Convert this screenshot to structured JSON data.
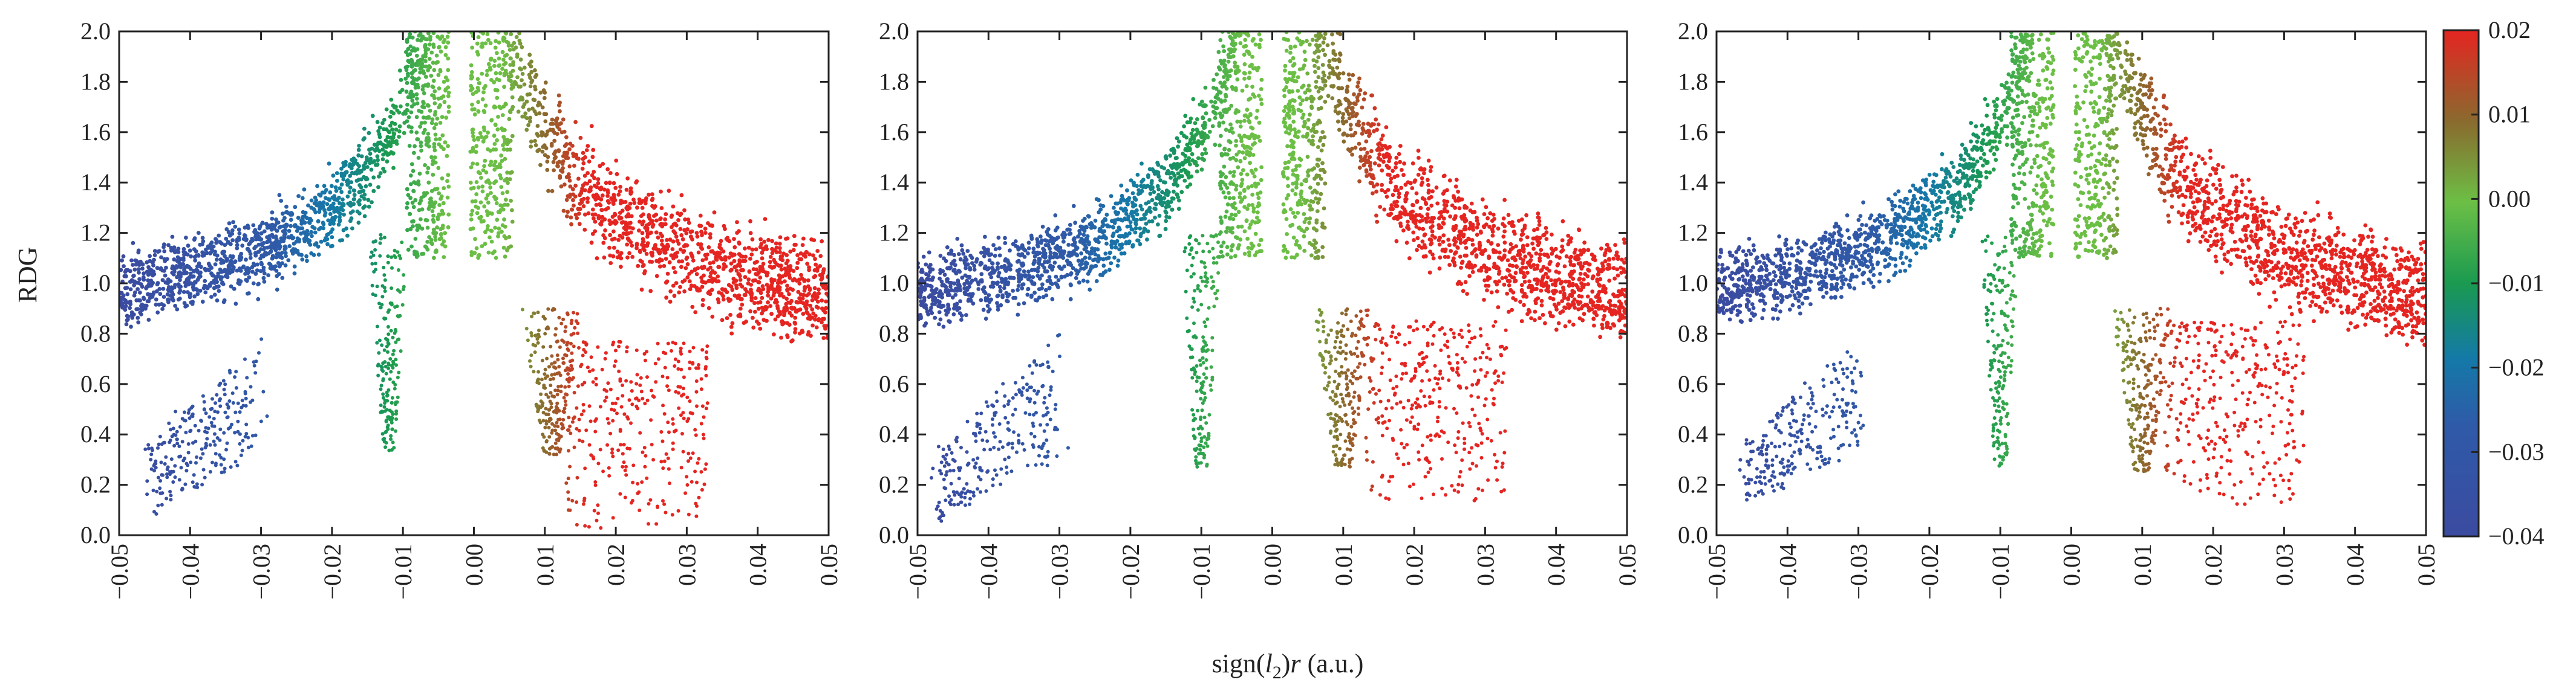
{
  "chart_data": {
    "type": "scatter",
    "layout": "three panels sharing y-axis and a colorbar",
    "x_axis": {
      "label_prefix": "sign(",
      "label_lambda": "l",
      "label_sub": "2",
      "label_suffix": ")",
      "label_var": "r",
      "label_unit": " (a.u.)",
      "range": [
        -0.05,
        0.05
      ],
      "ticks": [
        "−0.05",
        "−0.04",
        "−0.03",
        "−0.02",
        "−0.01",
        "0.00",
        "0.01",
        "0.02",
        "0.03",
        "0.04",
        "0.05"
      ],
      "tick_values": [
        -0.05,
        -0.04,
        -0.03,
        -0.02,
        -0.01,
        0.0,
        0.01,
        0.02,
        0.03,
        0.04,
        0.05
      ]
    },
    "y_axis": {
      "label": "RDG",
      "range": [
        0.0,
        2.0
      ],
      "ticks": [
        "0.0",
        "0.2",
        "0.4",
        "0.6",
        "0.8",
        "1.0",
        "1.2",
        "1.4",
        "1.6",
        "1.8",
        "2.0"
      ],
      "tick_values": [
        0.0,
        0.2,
        0.4,
        0.6,
        0.8,
        1.0,
        1.2,
        1.4,
        1.6,
        1.8,
        2.0
      ]
    },
    "colorbar": {
      "range": [
        -0.04,
        0.02
      ],
      "ticks": [
        "0.02",
        "0.01",
        "0.00",
        "−0.01",
        "−0.02",
        "−0.03",
        "−0.04"
      ],
      "tick_values": [
        0.02,
        0.01,
        0.0,
        -0.01,
        -0.02,
        -0.03,
        -0.04
      ],
      "colors": [
        "#3b4ba0",
        "#1a6fb0",
        "#15a04a",
        "#6abf45",
        "#7a7030",
        "#e52521"
      ]
    },
    "panels": [
      {
        "spike_center": -0.002,
        "spike_top_y": 2.0,
        "right_spike_center": 0.011,
        "right_spike_min_y": 0.32,
        "left_spike_center": -0.012,
        "left_spike_min_y": 0.33,
        "bottom_left_cluster": {
          "x": [
            -0.046,
            -0.03
          ],
          "y": [
            0.07,
            0.8
          ]
        },
        "bottom_right_min_y": 0.02
      },
      {
        "spike_center": 0.0,
        "spike_top_y": 2.0,
        "right_spike_center": 0.01,
        "right_spike_min_y": 0.27,
        "left_spike_center": -0.01,
        "left_spike_min_y": 0.27,
        "bottom_left_cluster": {
          "x": [
            -0.047,
            -0.03
          ],
          "y": [
            0.05,
            0.85
          ]
        },
        "bottom_right_min_y": 0.1
      },
      {
        "spike_center": -0.001,
        "spike_top_y": 2.0,
        "right_spike_center": 0.01,
        "right_spike_min_y": 0.25,
        "left_spike_center": -0.01,
        "left_spike_min_y": 0.25,
        "bottom_left_cluster": {
          "x": [
            -0.046,
            -0.03
          ],
          "y": [
            0.1,
            0.75
          ]
        },
        "bottom_right_min_y": 0.1
      }
    ]
  }
}
